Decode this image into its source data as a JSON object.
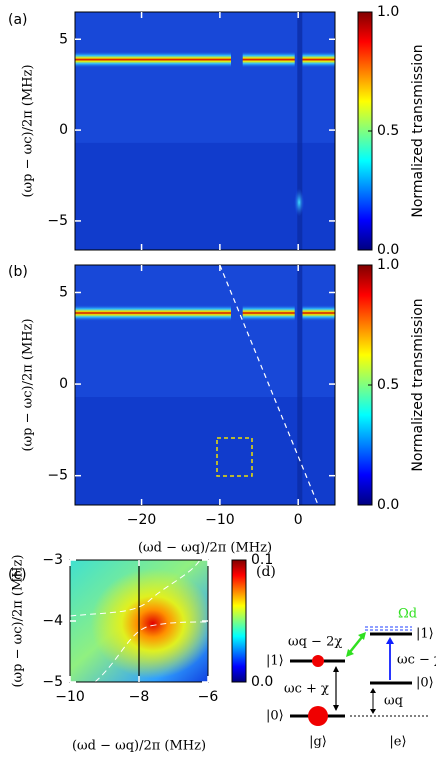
{
  "chart_data": [
    {
      "type": "heatmap",
      "label": "(a)",
      "ylabel": "(ωp − ωc)/2π (MHz)",
      "xlim": [
        -28.5,
        4.7
      ],
      "xticks": [
        -20,
        -10,
        0
      ],
      "ylim": [
        -6.6,
        6.5
      ],
      "yticks": [
        {
          "value": -5,
          "label": "−5"
        },
        0,
        5
      ],
      "colorbar": {
        "label": "Normalized transmission",
        "lim": [
          0,
          1
        ],
        "ticks": [
          {
            "value": 0,
            "label": "0.0"
          },
          0.5,
          {
            "value": 1,
            "label": "1.0"
          }
        ]
      }
    },
    {
      "type": "heatmap",
      "label": "(b)",
      "ylabel": "(ωp − ωc)/2π (MHz)",
      "xlabel": "(ωd − ωq)/2π (MHz)",
      "xlim": [
        -28.5,
        4.7
      ],
      "xticks": [
        {
          "value": -20,
          "label": "−20"
        },
        {
          "value": -10,
          "label": "−10"
        },
        0
      ],
      "ylim": [
        -6.6,
        6.5
      ],
      "yticks": [
        {
          "value": -5,
          "label": "−5"
        },
        0,
        5
      ],
      "colorbar": {
        "label": "Normalized transmission",
        "lim": [
          0,
          1
        ],
        "ticks": [
          {
            "value": 0,
            "label": "0.0"
          },
          0.5,
          {
            "value": 1,
            "label": "1.0"
          }
        ]
      }
    },
    {
      "type": "heatmap",
      "label": "(c)",
      "ylabel": "(ωp − ωc)/2π (MHz)",
      "xlabel": "(ωd − ωq)/2π (MHz)",
      "xlim": [
        -10,
        -6
      ],
      "xticks": [
        {
          "value": -10,
          "label": "−10"
        },
        {
          "value": -8,
          "label": "−8"
        },
        {
          "value": -6,
          "label": "−6"
        }
      ],
      "ylim": [
        -5,
        -3
      ],
      "yticks": [
        {
          "value": -5,
          "label": "−5"
        },
        {
          "value": -4,
          "label": "−4"
        },
        {
          "value": -3,
          "label": "−3"
        }
      ],
      "colorbar": {
        "lim": [
          0,
          0.1
        ],
        "ticks": [
          {
            "value": 0,
            "label": "0.0"
          },
          0.1
        ]
      }
    }
  ],
  "diagram": {
    "label": "(d)",
    "drive": "Ωd",
    "transition": "ωq − 2χ",
    "left_upper": "|1⟩",
    "left_lower": "|0⟩",
    "left_gap": "ωc + χ",
    "left_state": "|g⟩",
    "right_upper": "|1⟩",
    "right_lower": "|0⟩",
    "right_gap": "ωc − χ",
    "right_offset": "ωq",
    "right_state": "|e⟩"
  }
}
